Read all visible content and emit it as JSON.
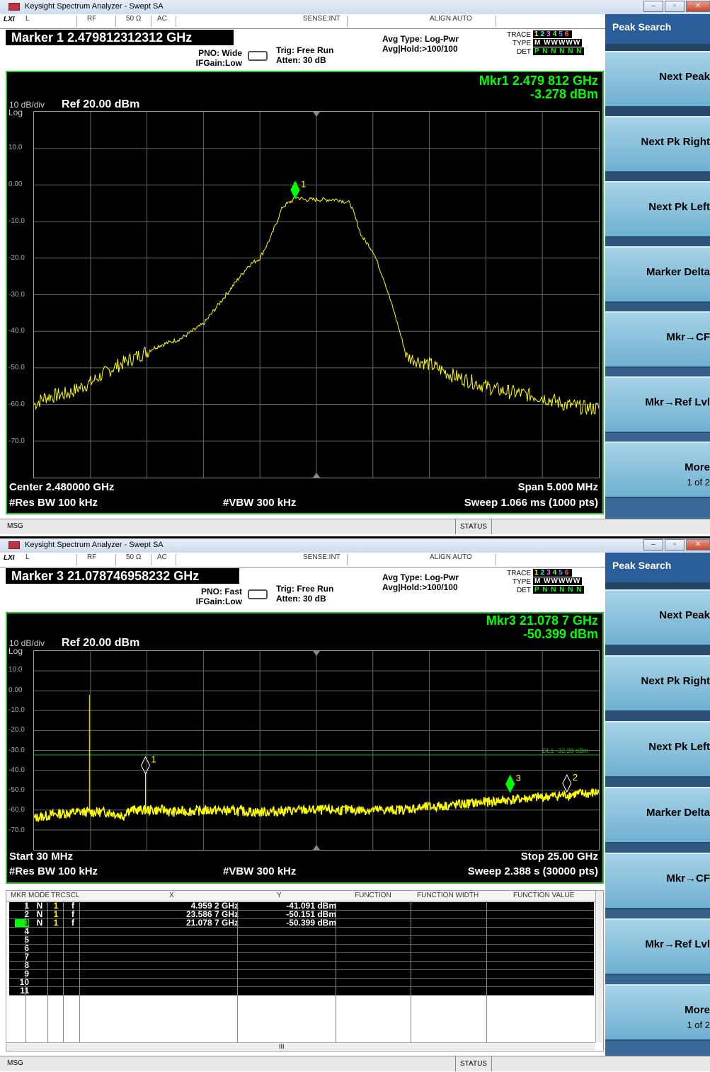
{
  "app_title": "Keysight Spectrum Analyzer - Swept SA",
  "window_buttons": [
    "–",
    "▫",
    "✕"
  ],
  "status_row": {
    "lxi": "LXI",
    "l": "L",
    "rf": "RF",
    "ohm": "50 Ω",
    "ac": "AC",
    "sense": "SENSE:INT",
    "align": "ALIGN AUTO"
  },
  "softkeys": {
    "title": "Peak Search",
    "keys": [
      "Next Peak",
      "Next Pk Right",
      "Next Pk Left",
      "Marker Delta",
      "Mkr→CF",
      "Mkr→Ref Lvl",
      "More"
    ],
    "more_sub": "1 of 2"
  },
  "msg_label": "MSG",
  "status_label": "STATUS",
  "trace": {
    "label": "TRACE",
    "type_label": "TYPE",
    "det_label": "DET",
    "nums": [
      "1",
      "2",
      "3",
      "4",
      "5",
      "6"
    ],
    "num_colors": [
      "#ffff00",
      "#00ffff",
      "#ff66ff",
      "#66ff66",
      "#6699ff",
      "#ff6666"
    ],
    "type_vals": "M WWWWW",
    "det_vals": "P N N N N N"
  },
  "top": {
    "marker_title": "Marker 1 2.479812312312 GHz",
    "pno": "PNO: Wide",
    "ifgain": "IFGain:Low",
    "trig": "Trig: Free Run",
    "atten": "Atten: 30 dB",
    "avg_type": "Avg Type: Log-Pwr",
    "avg_hold": "Avg|Hold:>100/100",
    "scale": "10 dB/div",
    "log": "Log",
    "ref": "Ref 20.00 dBm",
    "mkr_line1": "Mkr1 2.479 812 GHz",
    "mkr_line2": "-3.278 dBm",
    "yticks": [
      "10.0",
      "0.00",
      "-10.0",
      "-20.0",
      "-30.0",
      "-40.0",
      "-50.0",
      "-60.0",
      "-70.0"
    ],
    "center": "Center 2.480000 GHz",
    "span": "Span 5.000 MHz",
    "res_bw": "#Res BW 100 kHz",
    "vbw": "#VBW 300 kHz",
    "sweep": "Sweep  1.066 ms (1000 pts)",
    "marker_label": "1"
  },
  "bottom": {
    "marker_title": "Marker 3 21.078746958232 GHz",
    "pno": "PNO: Fast",
    "ifgain": "IFGain:Low",
    "trig": "Trig: Free Run",
    "atten": "Atten: 30 dB",
    "avg_type": "Avg Type: Log-Pwr",
    "avg_hold": "Avg|Hold:>100/100",
    "scale": "10 dB/div",
    "log": "Log",
    "ref": "Ref 20.00 dBm",
    "mkr_line1": "Mkr3 21.078 7 GHz",
    "mkr_line2": "-50.399 dBm",
    "yticks": [
      "10.0",
      "0.00",
      "-10.0",
      "-20.0",
      "-30.0",
      "-40.0",
      "-50.0",
      "-60.0",
      "-70.0"
    ],
    "display_line": "DL1 -32.28 dBm",
    "start": "Start 30 MHz",
    "stop": "Stop 25.00 GHz",
    "res_bw": "#Res BW 100 kHz",
    "vbw": "#VBW 300 kHz",
    "sweep": "Sweep  2.388 s (30000 pts)",
    "marker_labels": [
      "1",
      "2",
      "3"
    ]
  },
  "marker_table": {
    "headers": [
      "MKR",
      "MODE",
      "TRC",
      "SCL",
      "X",
      "Y",
      "FUNCTION",
      "FUNCTION WIDTH",
      "FUNCTION VALUE"
    ],
    "rows": [
      {
        "mkr": "1",
        "mode": "N",
        "trc": "1",
        "scl": "f",
        "x": "4.959 2 GHz",
        "y": "-41.091 dBm"
      },
      {
        "mkr": "2",
        "mode": "N",
        "trc": "1",
        "scl": "f",
        "x": "23.586 7 GHz",
        "y": "-50.151 dBm"
      },
      {
        "mkr": "3",
        "mode": "N",
        "trc": "1",
        "scl": "f",
        "x": "21.078 7 GHz",
        "y": "-50.399 dBm"
      },
      {
        "mkr": "4"
      },
      {
        "mkr": "5"
      },
      {
        "mkr": "6"
      },
      {
        "mkr": "7"
      },
      {
        "mkr": "8"
      },
      {
        "mkr": "9"
      },
      {
        "mkr": "10"
      },
      {
        "mkr": "11"
      }
    ],
    "scroll_mark": "III"
  },
  "chart_data": [
    {
      "type": "line",
      "xlabel": "",
      "ylabel": "",
      "x_unit": "GHz",
      "y_unit": "dBm",
      "xlim": [
        2.4775,
        2.4825
      ],
      "ylim": [
        -80,
        20
      ],
      "grid": true,
      "series": [
        {
          "x": [
            2.4775,
            2.4776,
            2.4778,
            2.478,
            2.4782,
            2.4784,
            2.4786,
            2.4788,
            2.479,
            2.4792,
            2.4794,
            2.4795,
            2.4796,
            2.4797,
            2.4798,
            2.47981,
            2.4799,
            2.48,
            2.4801,
            2.4802,
            2.4803,
            2.4804,
            2.4805,
            2.4806,
            2.4807,
            2.4808,
            2.481,
            2.4812,
            2.4814,
            2.4816,
            2.4818,
            2.482,
            2.4822,
            2.4824,
            2.4825
          ],
          "y": [
            -60,
            -58,
            -57,
            -54,
            -50,
            -47,
            -44,
            -42,
            -38,
            -30,
            -22,
            -20,
            -14,
            -6,
            -4,
            -3.3,
            -4,
            -4,
            -4,
            -4,
            -5,
            -14,
            -18,
            -26,
            -36,
            -47,
            -49,
            -52,
            -54,
            -56,
            -57,
            -58,
            -60,
            -61,
            -61
          ]
        }
      ],
      "markers": [
        {
          "label": "1",
          "x": 2.479812,
          "y": -3.278
        }
      ]
    },
    {
      "type": "line",
      "xlabel": "",
      "ylabel": "",
      "x_unit": "GHz",
      "y_unit": "dBm",
      "xlim": [
        0.03,
        25.0
      ],
      "ylim": [
        -80,
        20
      ],
      "grid": true,
      "display_line_dbm": -32.28,
      "series": [
        {
          "x": [
            0.03,
            1.0,
            2.0,
            2.48,
            3.0,
            4.0,
            4.96,
            6.0,
            8.0,
            10.0,
            12.0,
            14.0,
            16.0,
            18.0,
            20.0,
            21.08,
            22.0,
            23.59,
            24.5,
            25.0
          ],
          "y": [
            -64,
            -62,
            -61,
            -2,
            -60,
            -63,
            -41,
            -61,
            -60,
            -61,
            -60,
            -60,
            -59,
            -58,
            -56,
            -50.4,
            -54,
            -50.2,
            -52,
            -51
          ]
        }
      ],
      "markers": [
        {
          "label": "1",
          "x": 4.9592,
          "y": -41.091
        },
        {
          "label": "2",
          "x": 23.5867,
          "y": -50.151
        },
        {
          "label": "3",
          "x": 21.0787,
          "y": -50.399
        }
      ]
    }
  ]
}
